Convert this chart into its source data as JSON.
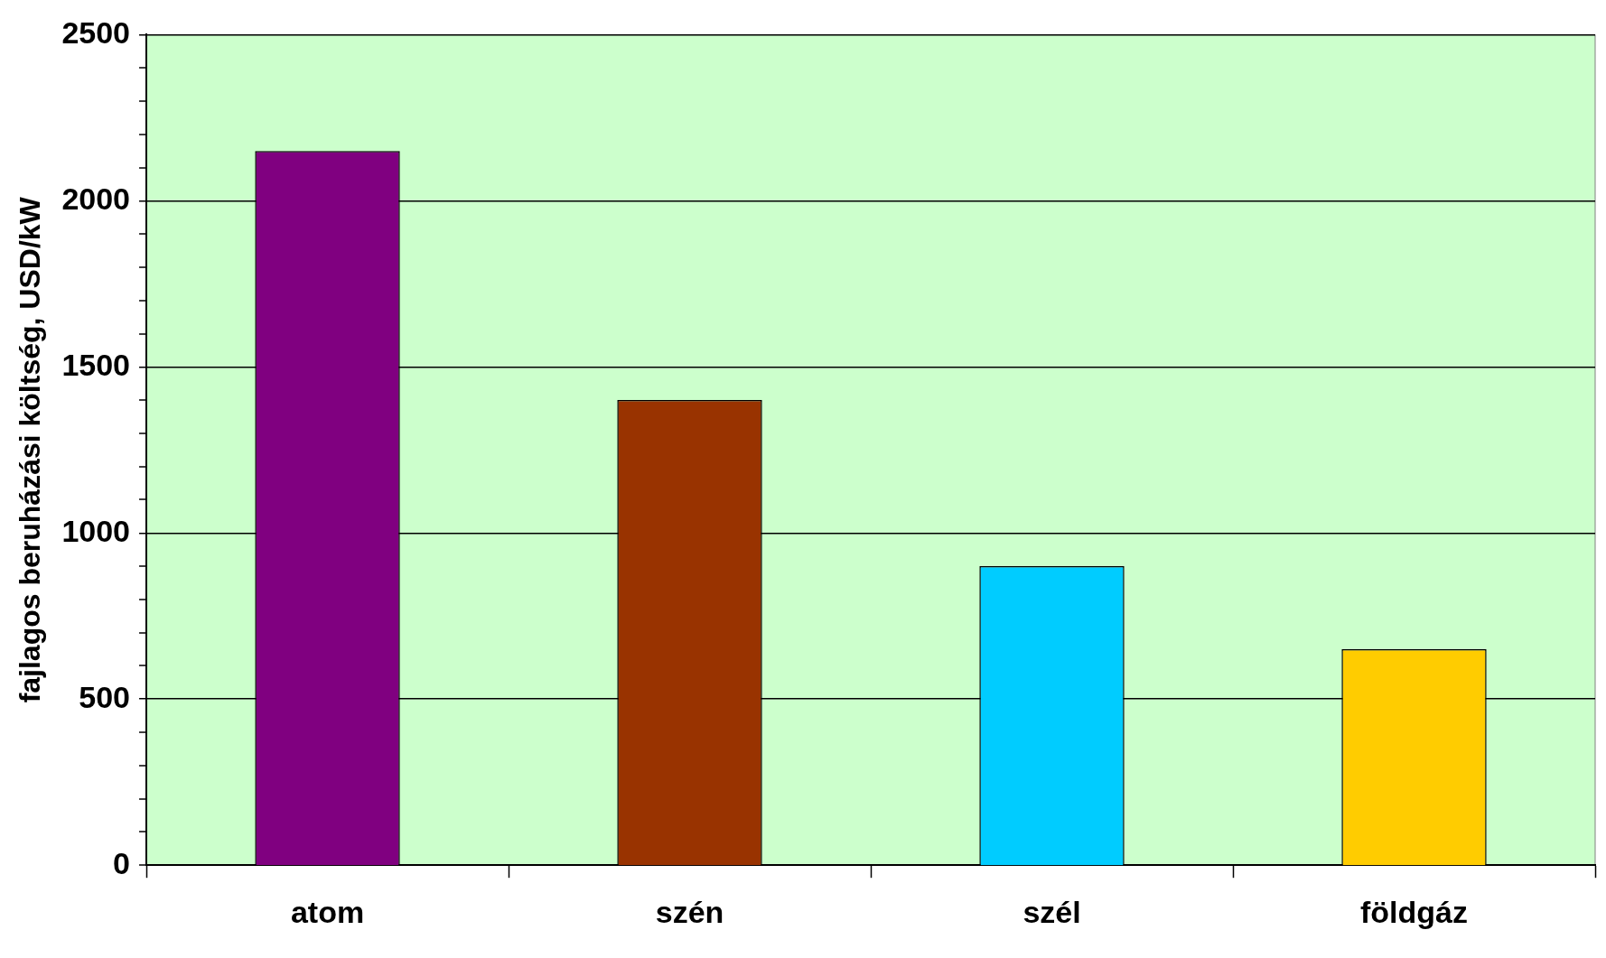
{
  "chart_data": {
    "type": "bar",
    "ylabel": "fajlagos beruházási költség, USD/kW",
    "categories": [
      "atom",
      "szén",
      "szél",
      "földgáz"
    ],
    "values": [
      2150,
      1400,
      900,
      650
    ],
    "colors": [
      "#800080",
      "#993300",
      "#00ccff",
      "#ffcc00"
    ],
    "ylim": [
      0,
      2500
    ],
    "yticks": [
      0,
      {
        "value": 100,
        "label": null
      },
      {
        "value": 200,
        "label": null
      },
      {
        "value": 300,
        "label": null
      },
      {
        "value": 400,
        "label": null
      },
      500,
      {
        "value": 600,
        "label": null
      },
      {
        "value": 700,
        "label": null
      },
      {
        "value": 800,
        "label": null
      },
      {
        "value": 900,
        "label": null
      },
      1000,
      {
        "value": 1100,
        "label": null
      },
      {
        "value": 1200,
        "label": null
      },
      {
        "value": 1300,
        "label": null
      },
      {
        "value": 1400,
        "label": null
      },
      1500,
      {
        "value": 1600,
        "label": null
      },
      {
        "value": 1700,
        "label": null
      },
      {
        "value": 1800,
        "label": null
      },
      {
        "value": 1900,
        "label": null
      },
      2000,
      {
        "value": 2100,
        "label": null
      },
      {
        "value": 2200,
        "label": null
      },
      {
        "value": 2300,
        "label": null
      },
      {
        "value": 2400,
        "label": null
      },
      2500
    ],
    "grid": "y"
  }
}
